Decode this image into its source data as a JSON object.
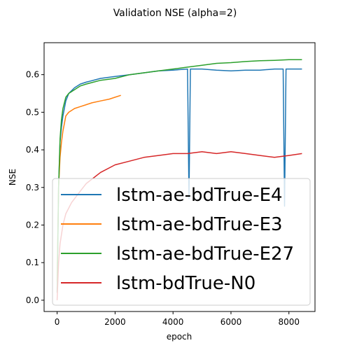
{
  "chart_data": {
    "type": "line",
    "title": "Validation NSE (alpha=2)",
    "xlabel": "epoch",
    "ylabel": "NSE",
    "xlim": [
      -450,
      8900
    ],
    "ylim": [
      -0.03,
      0.685
    ],
    "xticks": [
      0,
      2000,
      4000,
      6000,
      8000
    ],
    "yticks": [
      0.0,
      0.1,
      0.2,
      0.3,
      0.4,
      0.5,
      0.6
    ],
    "xtick_labels": [
      "0",
      "2000",
      "4000",
      "6000",
      "8000"
    ],
    "ytick_labels": [
      "0.0",
      "0.1",
      "0.2",
      "0.3",
      "0.4",
      "0.5",
      "0.6"
    ],
    "grid": false,
    "legend_position": "lower-right",
    "series": [
      {
        "name": "lstm-ae-bdTrue-E4",
        "color": "#1f77b4",
        "x": [
          0,
          50,
          100,
          150,
          200,
          300,
          400,
          600,
          800,
          1000,
          1500,
          2000,
          2500,
          3000,
          3500,
          4000,
          4500,
          4550,
          4600,
          4650,
          5000,
          5500,
          6000,
          6500,
          7000,
          7500,
          7800,
          7850,
          7900,
          7950,
          8000,
          8200,
          8450
        ],
        "y": [
          0.02,
          0.3,
          0.42,
          0.46,
          0.49,
          0.53,
          0.55,
          0.565,
          0.575,
          0.58,
          0.59,
          0.595,
          0.6,
          0.605,
          0.61,
          0.612,
          0.615,
          0.27,
          0.615,
          0.615,
          0.615,
          0.612,
          0.61,
          0.612,
          0.612,
          0.615,
          0.615,
          0.25,
          0.615,
          0.615,
          0.615,
          0.615,
          0.615
        ]
      },
      {
        "name": "lstm-ae-bdTrue-E3",
        "color": "#ff7f0e",
        "x": [
          0,
          50,
          100,
          150,
          200,
          250,
          300,
          400,
          600,
          800,
          1000,
          1200,
          1500,
          1800,
          2000,
          2200
        ],
        "y": [
          0.05,
          0.3,
          0.38,
          0.42,
          0.45,
          0.47,
          0.49,
          0.5,
          0.51,
          0.515,
          0.52,
          0.525,
          0.53,
          0.535,
          0.54,
          0.545
        ]
      },
      {
        "name": "lstm-ae-bdTrue-E27",
        "color": "#2ca02c",
        "x": [
          0,
          50,
          100,
          150,
          200,
          300,
          400,
          600,
          800,
          1000,
          1500,
          2000,
          2500,
          3000,
          3500,
          4000,
          4500,
          5000,
          5500,
          6000,
          6500,
          7000,
          7500,
          8000,
          8450
        ],
        "y": [
          0.02,
          0.3,
          0.43,
          0.48,
          0.51,
          0.54,
          0.55,
          0.56,
          0.57,
          0.575,
          0.585,
          0.59,
          0.6,
          0.605,
          0.61,
          0.615,
          0.62,
          0.625,
          0.63,
          0.632,
          0.635,
          0.637,
          0.638,
          0.64,
          0.64
        ]
      },
      {
        "name": "lstm-bdTrue-N0",
        "color": "#d62728",
        "x": [
          0,
          50,
          100,
          200,
          300,
          500,
          800,
          1000,
          1500,
          2000,
          2500,
          3000,
          3500,
          4000,
          4500,
          5000,
          5500,
          6000,
          6500,
          7000,
          7500,
          8000,
          8450
        ],
        "y": [
          0.0,
          0.1,
          0.15,
          0.2,
          0.23,
          0.26,
          0.29,
          0.31,
          0.34,
          0.36,
          0.37,
          0.38,
          0.385,
          0.39,
          0.39,
          0.395,
          0.39,
          0.395,
          0.39,
          0.385,
          0.38,
          0.385,
          0.39
        ]
      }
    ]
  }
}
